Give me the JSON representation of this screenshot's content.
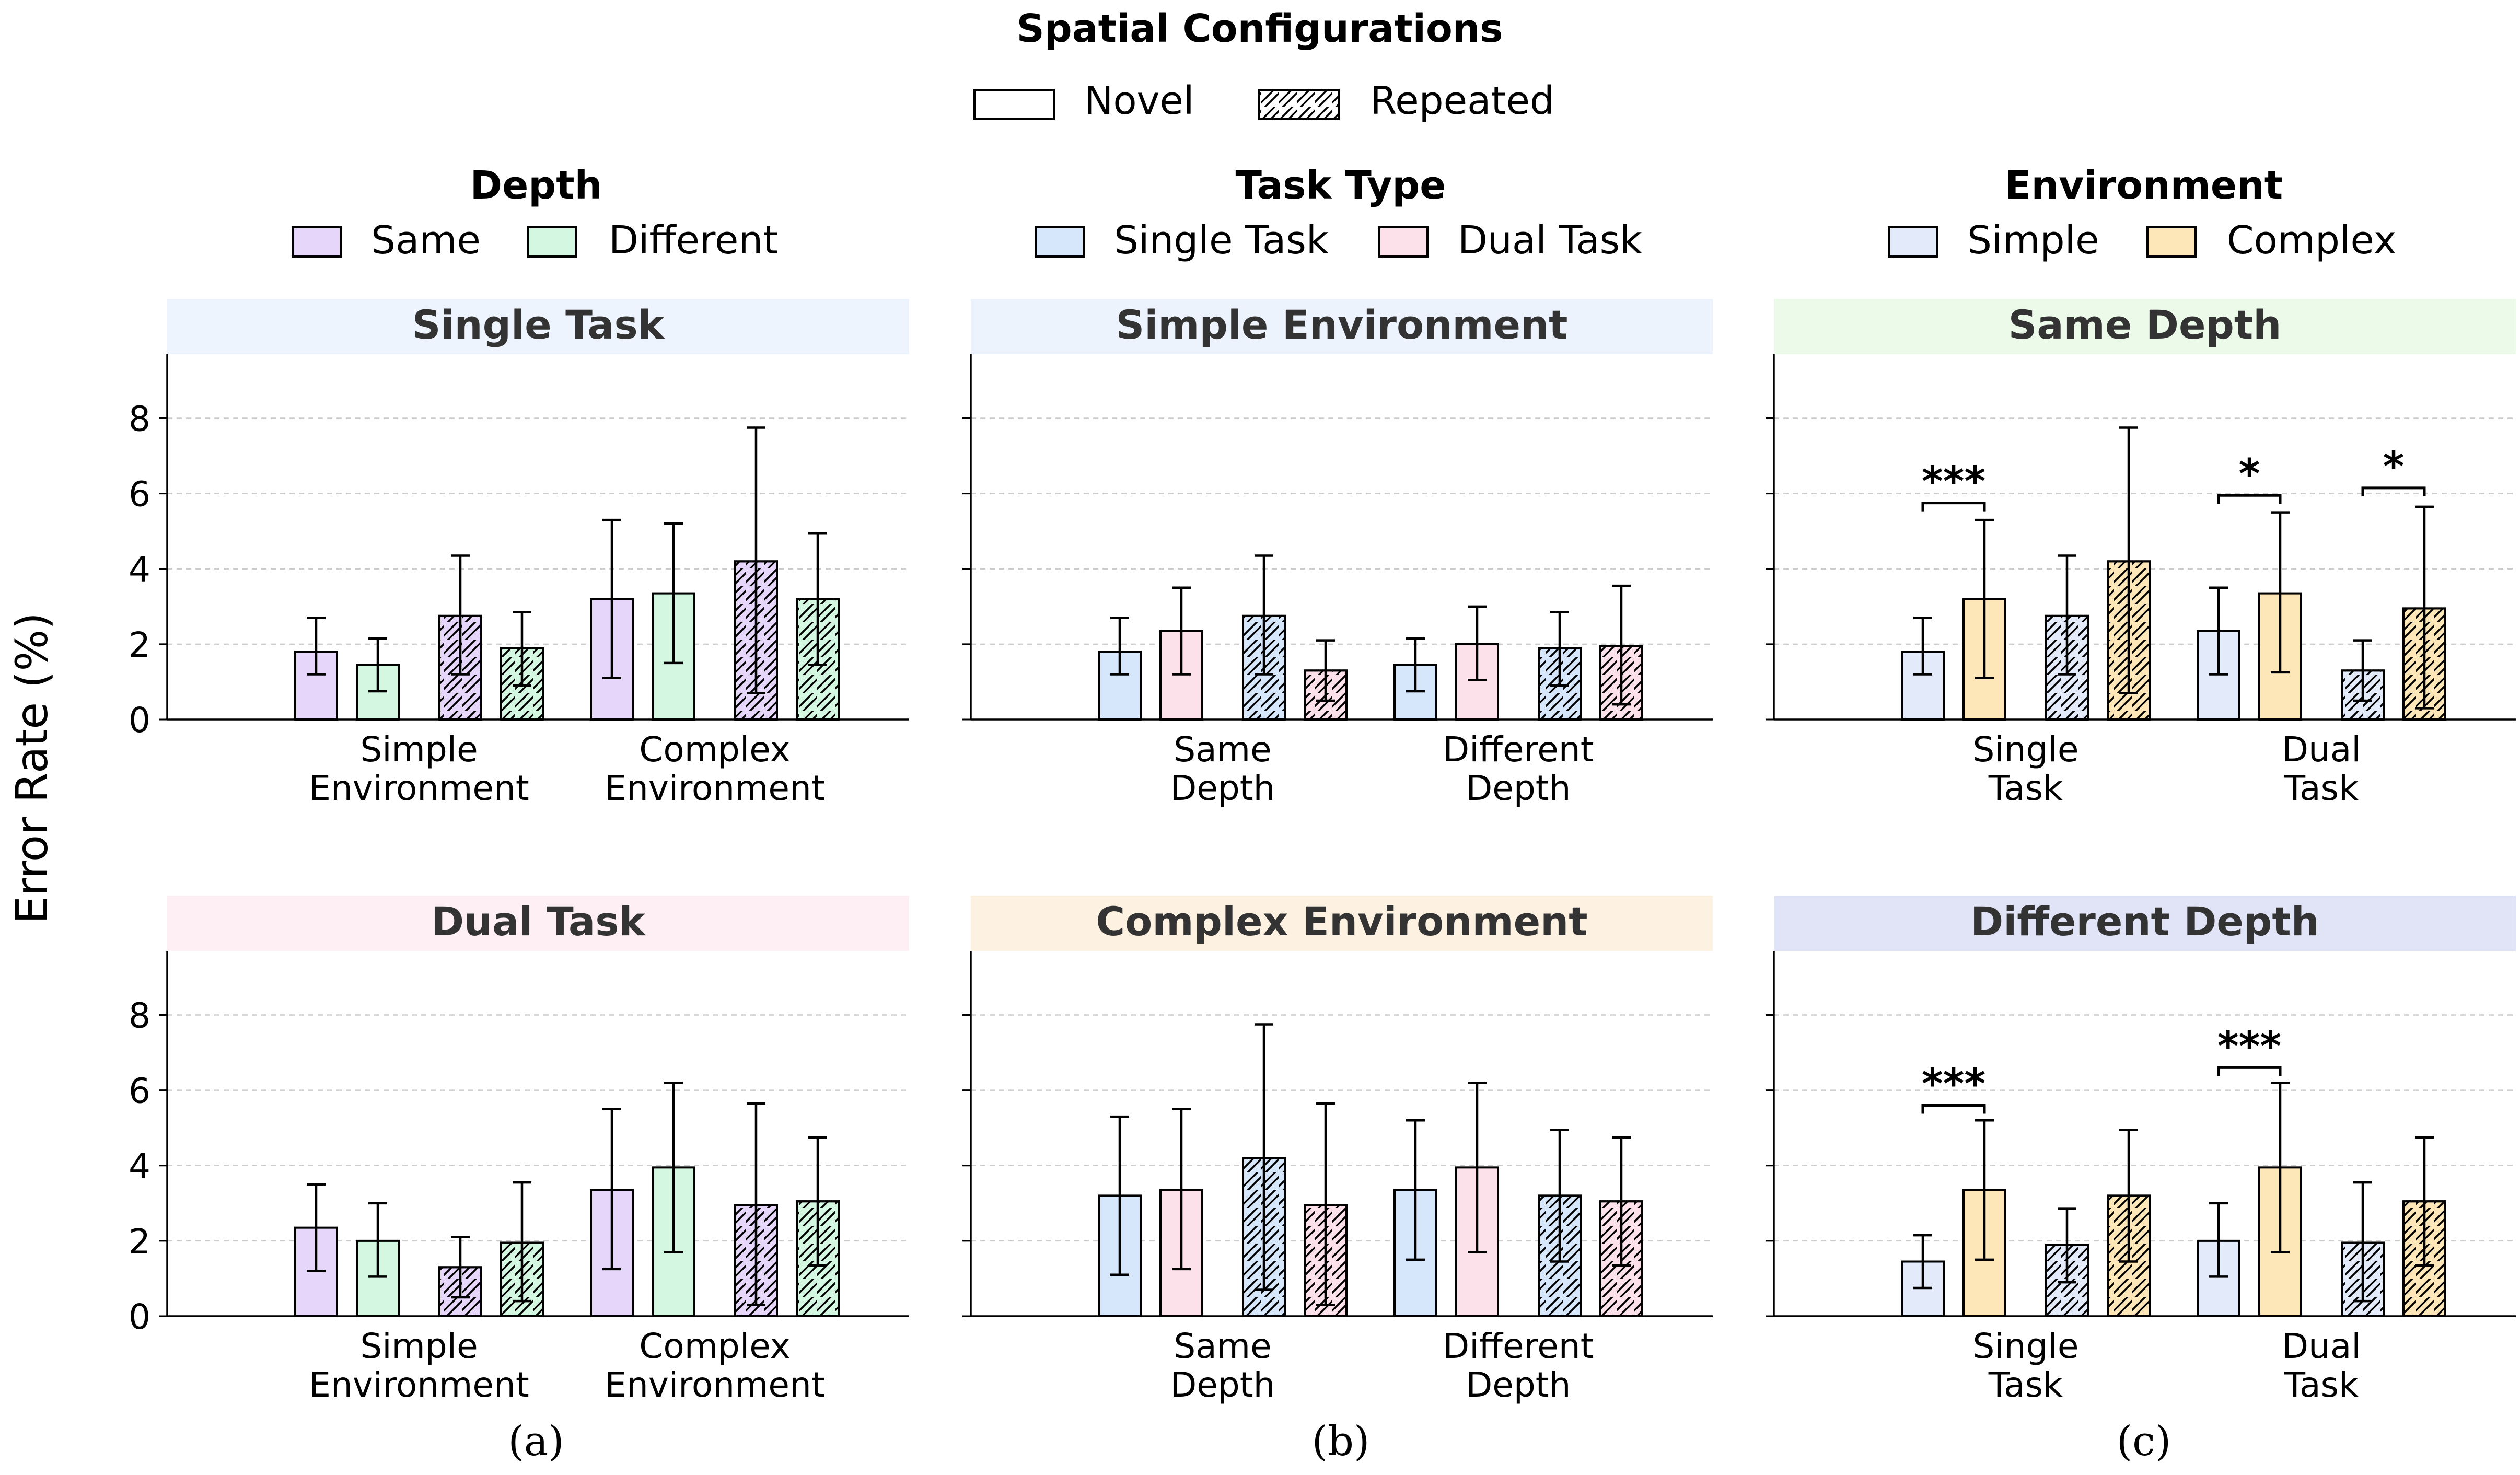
{
  "y_axis_label": "Error Rate (%)",
  "config_legend": {
    "title": "Spatial Configurations",
    "items": [
      {
        "label": "Novel",
        "hatch": false
      },
      {
        "label": "Repeated",
        "hatch": true
      }
    ]
  },
  "colors": {
    "same": "#e6d6fa",
    "different": "#d4f7e2",
    "single_task": "#d6e6fb",
    "dual_task": "#fde1ea",
    "simple": "#e3ebfb",
    "complex": "#fde6b8",
    "strip_single_task": "#edf4fd",
    "strip_dual_task": "#fdeff4",
    "strip_simple_env": "#edf3fd",
    "strip_complex_env": "#fdf2e1",
    "strip_same_depth": "#ecfbe9",
    "strip_different_depth": "#e1e3f7"
  },
  "columns": [
    {
      "caption": "(a)",
      "legend": {
        "title": "Depth",
        "items": [
          {
            "label": "Same",
            "color_key": "same"
          },
          {
            "label": "Different",
            "color_key": "different"
          }
        ]
      }
    },
    {
      "caption": "(b)",
      "legend": {
        "title": "Task Type",
        "items": [
          {
            "label": "Single Task",
            "color_key": "single_task"
          },
          {
            "label": "Dual Task",
            "color_key": "dual_task"
          }
        ]
      }
    },
    {
      "caption": "(c)",
      "legend": {
        "title": "Environment",
        "items": [
          {
            "label": "Simple",
            "color_key": "simple"
          },
          {
            "label": "Complex",
            "color_key": "complex"
          }
        ]
      }
    }
  ],
  "chart_data": [
    {
      "type": "bar",
      "panel": "a-top",
      "title": "Single Task",
      "strip_color_key": "strip_single_task",
      "ylim": [
        0,
        9.7
      ],
      "yticks": [
        0,
        2,
        4,
        6,
        8
      ],
      "grid": true,
      "categories": [
        [
          "Simple",
          "Environment"
        ],
        [
          "Complex",
          "Environment"
        ]
      ],
      "series": [
        {
          "name": "Same / Novel",
          "color_key": "same",
          "hatch": false,
          "values": [
            1.8,
            3.2
          ],
          "err_low": [
            1.2,
            1.1
          ],
          "err_high": [
            2.7,
            5.3
          ]
        },
        {
          "name": "Different / Novel",
          "color_key": "different",
          "hatch": false,
          "values": [
            1.45,
            3.35
          ],
          "err_low": [
            0.75,
            1.5
          ],
          "err_high": [
            2.15,
            5.2
          ]
        },
        {
          "name": "Same / Repeated",
          "color_key": "same",
          "hatch": true,
          "values": [
            2.75,
            4.2
          ],
          "err_low": [
            1.2,
            0.7
          ],
          "err_high": [
            4.35,
            7.75
          ]
        },
        {
          "name": "Different / Repeated",
          "color_key": "different",
          "hatch": true,
          "values": [
            1.9,
            3.2
          ],
          "err_low": [
            0.9,
            1.45
          ],
          "err_high": [
            2.85,
            4.95
          ]
        }
      ],
      "significance": []
    },
    {
      "type": "bar",
      "panel": "a-bottom",
      "title": "Dual Task",
      "strip_color_key": "strip_dual_task",
      "ylim": [
        0,
        9.7
      ],
      "yticks": [
        0,
        2,
        4,
        6,
        8
      ],
      "grid": true,
      "categories": [
        [
          "Simple",
          "Environment"
        ],
        [
          "Complex",
          "Environment"
        ]
      ],
      "series": [
        {
          "name": "Same / Novel",
          "color_key": "same",
          "hatch": false,
          "values": [
            2.35,
            3.35
          ],
          "err_low": [
            1.2,
            1.25
          ],
          "err_high": [
            3.5,
            5.5
          ]
        },
        {
          "name": "Different / Novel",
          "color_key": "different",
          "hatch": false,
          "values": [
            2.0,
            3.95
          ],
          "err_low": [
            1.05,
            1.7
          ],
          "err_high": [
            3.0,
            6.2
          ]
        },
        {
          "name": "Same / Repeated",
          "color_key": "same",
          "hatch": true,
          "values": [
            1.3,
            2.95
          ],
          "err_low": [
            0.5,
            0.3
          ],
          "err_high": [
            2.1,
            5.65
          ]
        },
        {
          "name": "Different / Repeated",
          "color_key": "different",
          "hatch": true,
          "values": [
            1.95,
            3.05
          ],
          "err_low": [
            0.4,
            1.35
          ],
          "err_high": [
            3.55,
            4.75
          ]
        }
      ],
      "significance": []
    },
    {
      "type": "bar",
      "panel": "b-top",
      "title": "Simple Environment",
      "strip_color_key": "strip_simple_env",
      "ylim": [
        0,
        9.7
      ],
      "yticks": [
        0,
        2,
        4,
        6,
        8
      ],
      "grid": true,
      "categories": [
        [
          "Same",
          "Depth"
        ],
        [
          "Different",
          "Depth"
        ]
      ],
      "series": [
        {
          "name": "Single Task / Novel",
          "color_key": "single_task",
          "hatch": false,
          "values": [
            1.8,
            1.45
          ],
          "err_low": [
            1.2,
            0.75
          ],
          "err_high": [
            2.7,
            2.15
          ]
        },
        {
          "name": "Dual Task / Novel",
          "color_key": "dual_task",
          "hatch": false,
          "values": [
            2.35,
            2.0
          ],
          "err_low": [
            1.2,
            1.05
          ],
          "err_high": [
            3.5,
            3.0
          ]
        },
        {
          "name": "Single Task / Repeated",
          "color_key": "single_task",
          "hatch": true,
          "values": [
            2.75,
            1.9
          ],
          "err_low": [
            1.2,
            0.9
          ],
          "err_high": [
            4.35,
            2.85
          ]
        },
        {
          "name": "Dual Task / Repeated",
          "color_key": "dual_task",
          "hatch": true,
          "values": [
            1.3,
            1.95
          ],
          "err_low": [
            0.5,
            0.4
          ],
          "err_high": [
            2.1,
            3.55
          ]
        }
      ],
      "significance": []
    },
    {
      "type": "bar",
      "panel": "b-bottom",
      "title": "Complex Environment",
      "strip_color_key": "strip_complex_env",
      "ylim": [
        0,
        9.7
      ],
      "yticks": [
        0,
        2,
        4,
        6,
        8
      ],
      "grid": true,
      "categories": [
        [
          "Same",
          "Depth"
        ],
        [
          "Different",
          "Depth"
        ]
      ],
      "series": [
        {
          "name": "Single Task / Novel",
          "color_key": "single_task",
          "hatch": false,
          "values": [
            3.2,
            3.35
          ],
          "err_low": [
            1.1,
            1.5
          ],
          "err_high": [
            5.3,
            5.2
          ]
        },
        {
          "name": "Dual Task / Novel",
          "color_key": "dual_task",
          "hatch": false,
          "values": [
            3.35,
            3.95
          ],
          "err_low": [
            1.25,
            1.7
          ],
          "err_high": [
            5.5,
            6.2
          ]
        },
        {
          "name": "Single Task / Repeated",
          "color_key": "single_task",
          "hatch": true,
          "values": [
            4.2,
            3.2
          ],
          "err_low": [
            0.7,
            1.45
          ],
          "err_high": [
            7.75,
            4.95
          ]
        },
        {
          "name": "Dual Task / Repeated",
          "color_key": "dual_task",
          "hatch": true,
          "values": [
            2.95,
            3.05
          ],
          "err_low": [
            0.3,
            1.35
          ],
          "err_high": [
            5.65,
            4.75
          ]
        }
      ],
      "significance": []
    },
    {
      "type": "bar",
      "panel": "c-top",
      "title": "Same Depth",
      "strip_color_key": "strip_same_depth",
      "ylim": [
        0,
        9.7
      ],
      "yticks": [
        0,
        2,
        4,
        6,
        8
      ],
      "grid": true,
      "categories": [
        [
          "Single",
          "Task"
        ],
        [
          "Dual",
          "Task"
        ]
      ],
      "series": [
        {
          "name": "Simple / Novel",
          "color_key": "simple",
          "hatch": false,
          "values": [
            1.8,
            2.35
          ],
          "err_low": [
            1.2,
            1.2
          ],
          "err_high": [
            2.7,
            3.5
          ]
        },
        {
          "name": "Complex / Novel",
          "color_key": "complex",
          "hatch": false,
          "values": [
            3.2,
            3.35
          ],
          "err_low": [
            1.1,
            1.25
          ],
          "err_high": [
            5.3,
            5.5
          ]
        },
        {
          "name": "Simple / Repeated",
          "color_key": "simple",
          "hatch": true,
          "values": [
            2.75,
            1.3
          ],
          "err_low": [
            1.2,
            0.5
          ],
          "err_high": [
            4.35,
            2.1
          ]
        },
        {
          "name": "Complex / Repeated",
          "color_key": "complex",
          "hatch": true,
          "values": [
            4.2,
            2.95
          ],
          "err_low": [
            0.7,
            0.3
          ],
          "err_high": [
            7.75,
            5.65
          ]
        }
      ],
      "significance": [
        {
          "category": 0,
          "from_series": 0,
          "to_series": 1,
          "label": "***",
          "bracket_y": 5.75
        },
        {
          "category": 1,
          "from_series": 0,
          "to_series": 1,
          "label": "*",
          "bracket_y": 5.95
        },
        {
          "category": 1,
          "from_series": 2,
          "to_series": 3,
          "label": "*",
          "bracket_y": 6.15
        }
      ]
    },
    {
      "type": "bar",
      "panel": "c-bottom",
      "title": "Different Depth",
      "strip_color_key": "strip_different_depth",
      "ylim": [
        0,
        9.7
      ],
      "yticks": [
        0,
        2,
        4,
        6,
        8
      ],
      "grid": true,
      "categories": [
        [
          "Single",
          "Task"
        ],
        [
          "Dual",
          "Task"
        ]
      ],
      "series": [
        {
          "name": "Simple / Novel",
          "color_key": "simple",
          "hatch": false,
          "values": [
            1.45,
            2.0
          ],
          "err_low": [
            0.75,
            1.05
          ],
          "err_high": [
            2.15,
            3.0
          ]
        },
        {
          "name": "Complex / Novel",
          "color_key": "complex",
          "hatch": false,
          "values": [
            3.35,
            3.95
          ],
          "err_low": [
            1.5,
            1.7
          ],
          "err_high": [
            5.2,
            6.2
          ]
        },
        {
          "name": "Simple / Repeated",
          "color_key": "simple",
          "hatch": true,
          "values": [
            1.9,
            1.95
          ],
          "err_low": [
            0.9,
            0.4
          ],
          "err_high": [
            2.85,
            3.55
          ]
        },
        {
          "name": "Complex / Repeated",
          "color_key": "complex",
          "hatch": true,
          "values": [
            3.2,
            3.05
          ],
          "err_low": [
            1.45,
            1.35
          ],
          "err_high": [
            4.95,
            4.75
          ]
        }
      ],
      "significance": [
        {
          "category": 0,
          "from_series": 0,
          "to_series": 1,
          "label": "***",
          "bracket_y": 5.6
        },
        {
          "category": 1,
          "from_series": 0,
          "to_series": 1,
          "label": "***",
          "bracket_y": 6.6
        }
      ]
    }
  ]
}
